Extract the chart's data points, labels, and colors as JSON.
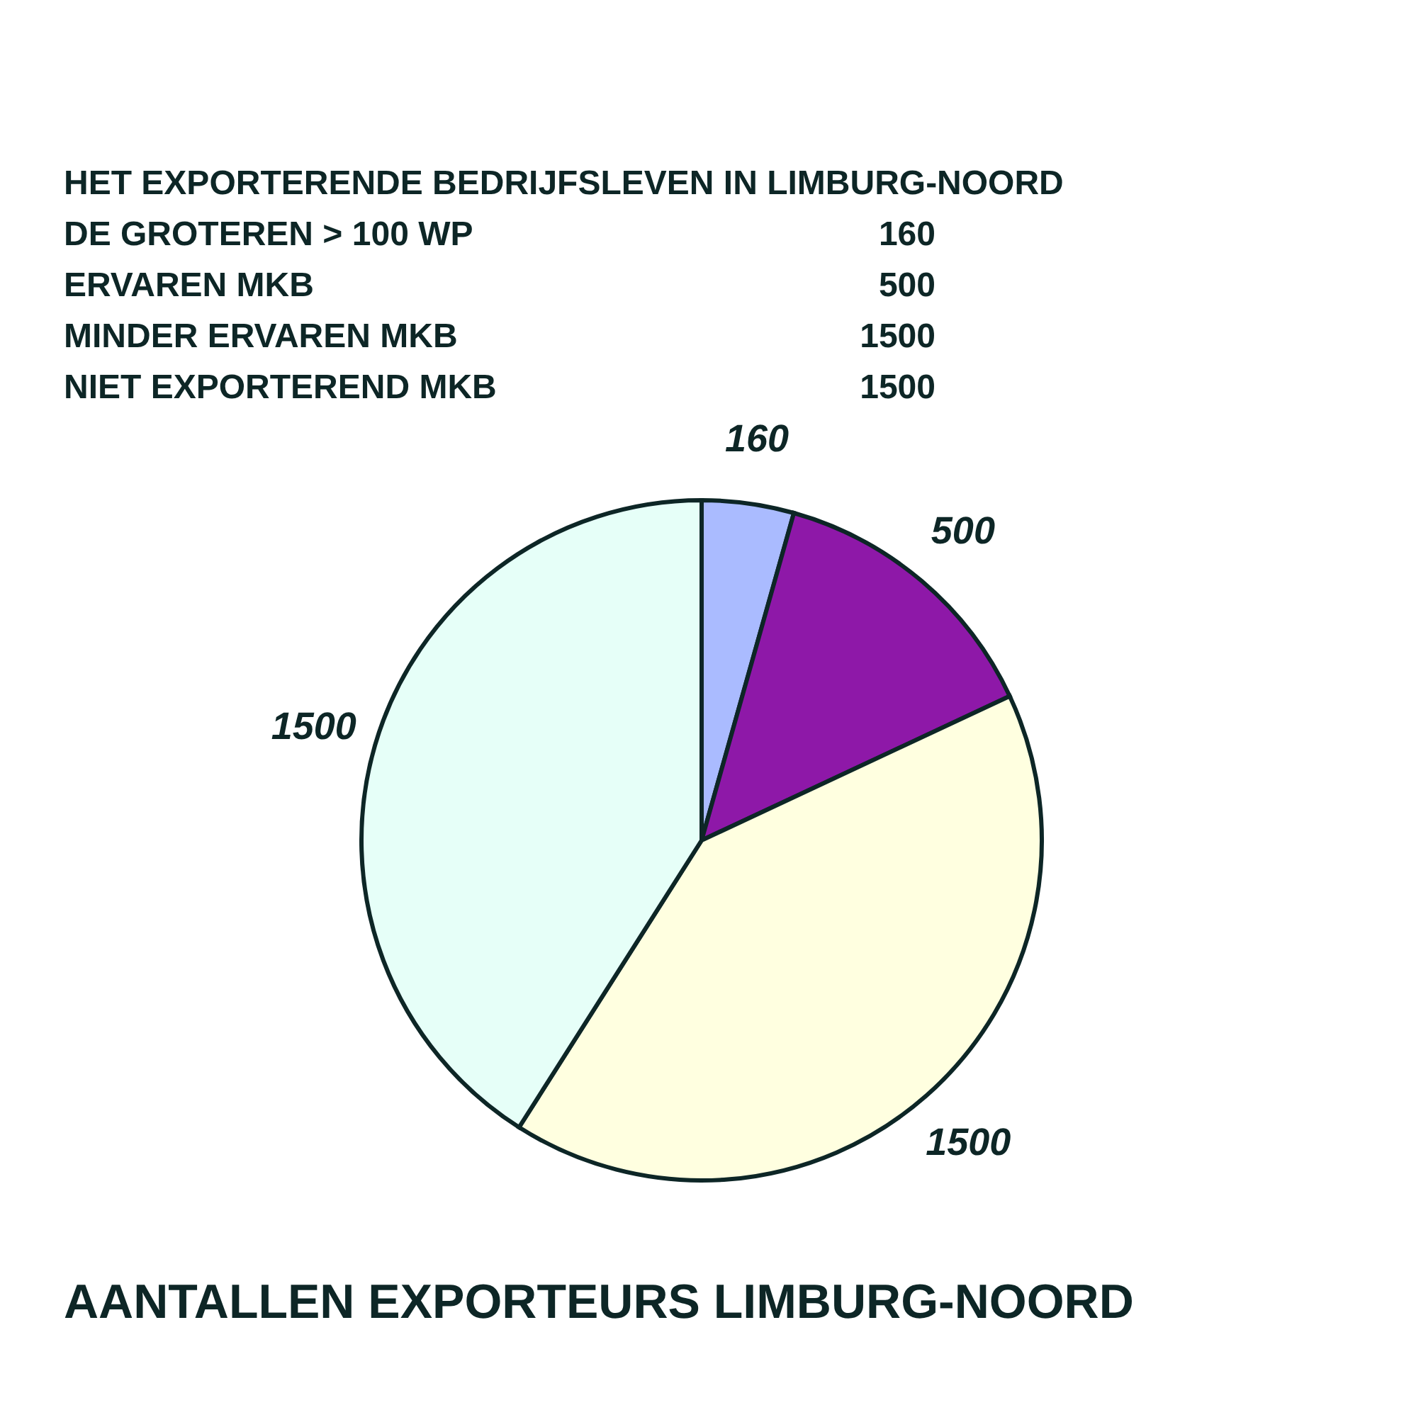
{
  "chart_data": [
    {
      "type": "other",
      "title": "HET EXPORTERENDE BEDRIJFSLEVEN IN LIMBURG-NOORD",
      "annotations": [
        "DE GROTEREN > 100 WP",
        "160",
        "ERVAREN MKB",
        "500",
        "MINDER ERVAREN MKB",
        "1500",
        "NIET EXPORTEREND MKB",
        "1500"
      ]
    },
    {
      "type": "pie",
      "title": "AANTALLEN  EXPORTEURS  LIMBURG-NOORD",
      "categories": [
        null,
        null,
        null,
        null
      ],
      "values": [
        160,
        500,
        1500,
        1500
      ],
      "colors": [
        "#aabbff",
        "#8e18a8",
        "#ffffe0",
        "#e6fff8"
      ],
      "data_labels": true
    }
  ]
}
